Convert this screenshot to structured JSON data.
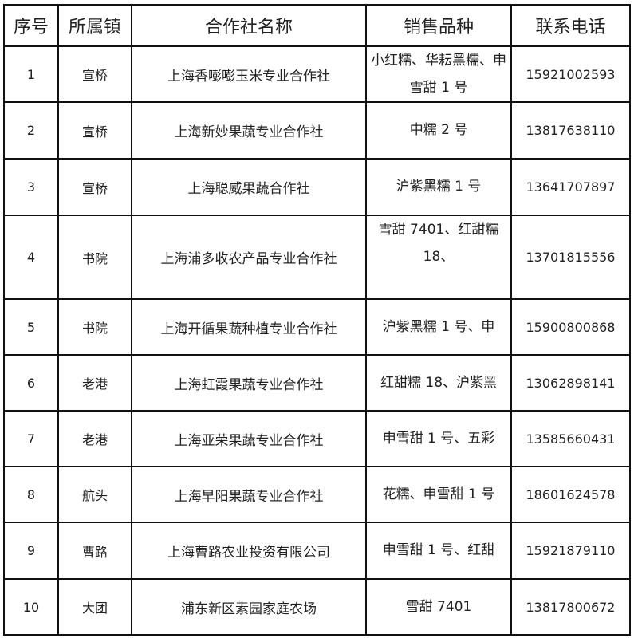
{
  "headers": [
    "序号",
    "所属镇",
    "合作社名称",
    "销售品种",
    "联系电话"
  ],
  "rows": [
    {
      "no": "1",
      "town": "宣桥",
      "name": "上海香嘭嘭玉米专业合作社",
      "variety": "小红糯、华耘黑糯、申雪甜 1 号",
      "phone": "15921002593"
    },
    {
      "no": "2",
      "town": "宣桥",
      "name": "上海新妙果蔬专业合作社",
      "variety": "中糯 2 号",
      "phone": "13817638110"
    },
    {
      "no": "3",
      "town": "宣桥",
      "name": "上海聪威果蔬合作社",
      "variety": "沪紫黑糯 1 号",
      "phone": "13641707897"
    },
    {
      "no": "4",
      "town": "书院",
      "name": "上海浦多收农产品专业合作社",
      "variety": "雪甜 7401、红甜糯 18、",
      "phone": "13701815556"
    },
    {
      "no": "5",
      "town": "书院",
      "name": "上海开循果蔬种植专业合作社",
      "variety": "沪紫黑糯 1 号、申",
      "phone": "15900800868"
    },
    {
      "no": "6",
      "town": "老港",
      "name": "上海虹霞果蔬专业合作社",
      "variety": "红甜糯 18、沪紫黑",
      "phone": "13062898141"
    },
    {
      "no": "7",
      "town": "老港",
      "name": "上海亚荣果蔬专业合作社",
      "variety": "申雪甜 1 号、五彩",
      "phone": "13585660431"
    },
    {
      "no": "8",
      "town": "航头",
      "name": "上海早阳果蔬专业合作社",
      "variety": "花糯、申雪甜 1 号",
      "phone": "18601624578"
    },
    {
      "no": "9",
      "town": "曹路",
      "name": "上海曹路农业投资有限公司",
      "variety": "申雪甜 1 号、红甜",
      "phone": "15921879110"
    },
    {
      "no": "10",
      "town": "大团",
      "name": "浦东新区素园家庭农场",
      "variety": "雪甜 7401",
      "phone": "13817800672"
    }
  ]
}
